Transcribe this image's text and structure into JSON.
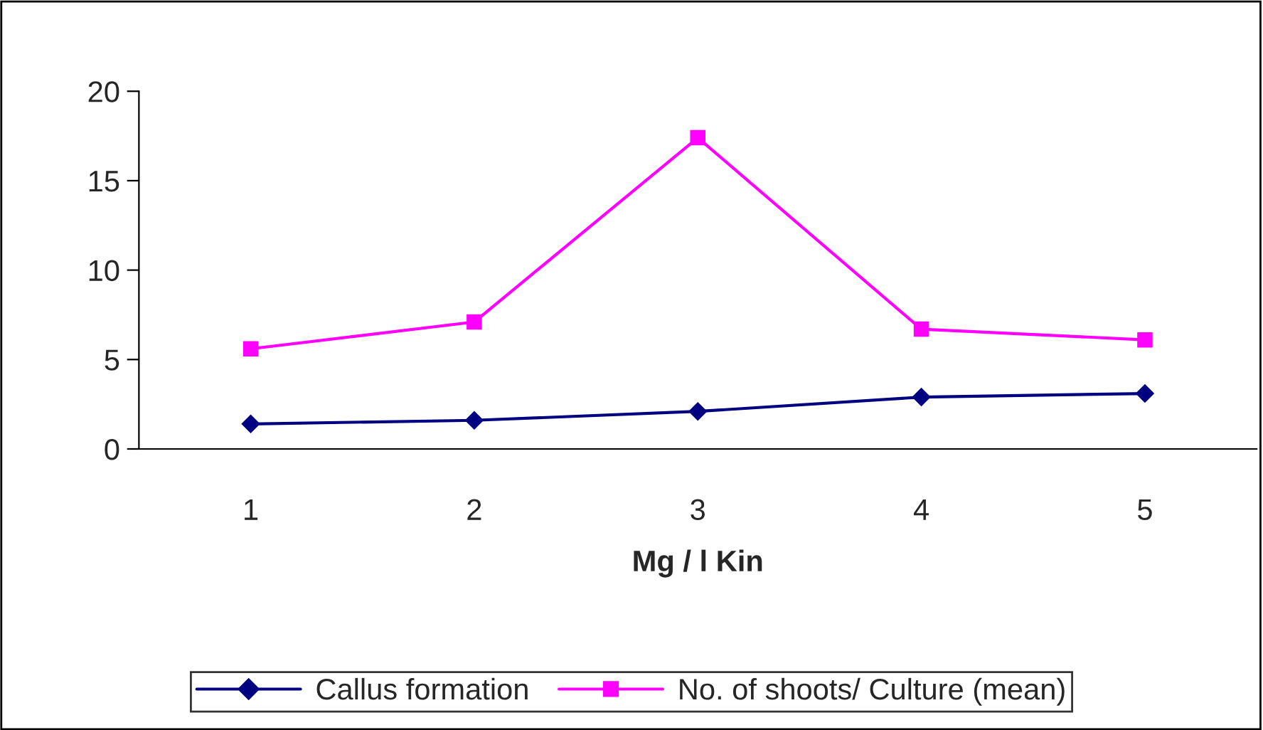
{
  "chart_data": {
    "type": "line",
    "xlabel": "Mg / l Kin",
    "categories": [
      "1",
      "2",
      "3",
      "4",
      "5"
    ],
    "series": [
      {
        "name": "Callus formation",
        "color": "#000080",
        "marker": "diamond",
        "values": [
          1.4,
          1.6,
          2.1,
          2.9,
          3.1
        ]
      },
      {
        "name": "No. of shoots/ Culture (mean)",
        "color": "#ff00ff",
        "marker": "square",
        "values": [
          5.6,
          7.1,
          17.4,
          6.7,
          6.1
        ]
      }
    ],
    "ylim": [
      0,
      20
    ],
    "yticks": [
      0,
      5,
      10,
      15,
      20
    ],
    "grid": false,
    "legend": "bottom",
    "line_style": "solid"
  }
}
